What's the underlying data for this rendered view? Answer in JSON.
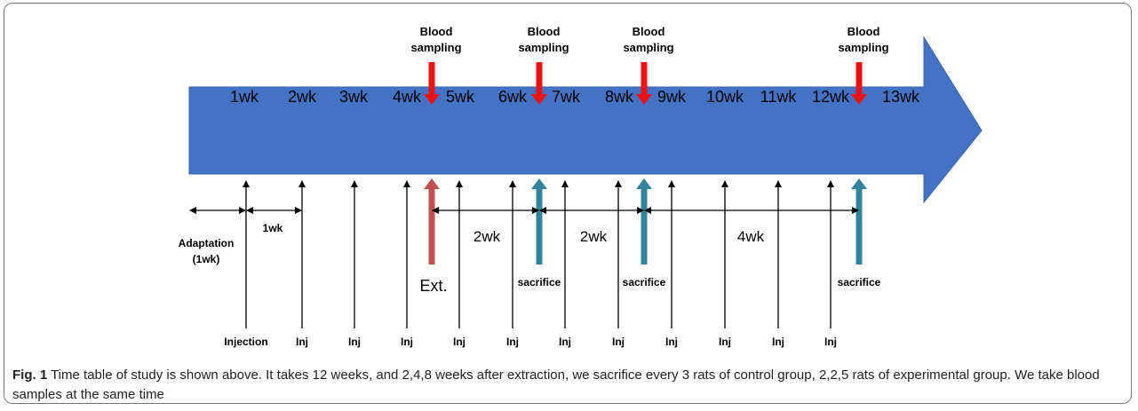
{
  "weeks": [
    "1wk",
    "2wk",
    "3wk",
    "4wk",
    "5wk",
    "6wk",
    "7wk",
    "8wk",
    "9wk",
    "10wk",
    "11wk",
    "12wk",
    "13wk"
  ],
  "blood_sampling": [
    "Blood sampling",
    "Blood sampling",
    "Blood sampling",
    "Blood sampling"
  ],
  "injections": [
    "Injection",
    "Inj",
    "Inj",
    "Inj",
    "Inj",
    "Inj",
    "Inj",
    "Inj",
    "Inj",
    "Inj",
    "Inj",
    "Inj"
  ],
  "extraction": "Ext.",
  "sacrifices": [
    "sacrifice",
    "sacrifice",
    "sacrifice"
  ],
  "intervals": [
    {
      "label": "Adaptation (1wk)"
    },
    {
      "label": "1wk"
    },
    {
      "label": "2wk"
    },
    {
      "label": "2wk"
    },
    {
      "label": "4wk"
    }
  ],
  "caption": {
    "label": "Fig. 1",
    "text": "Time table of study is shown above. It takes 12 weeks, and 2,4,8 weeks after extraction, we sacrifice every 3 rats of control group, 2,2,5 rats of experimental group. We take blood samples at the same time"
  }
}
